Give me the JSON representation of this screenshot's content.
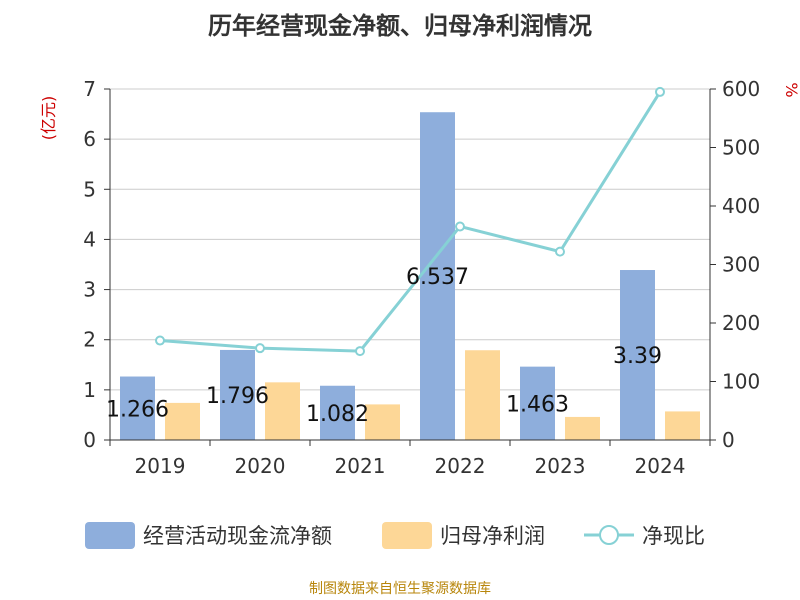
{
  "chart_data": {
    "type": "bar",
    "title": "历年经营现金净额、归母净利润情况",
    "categories": [
      "2019",
      "2020",
      "2021",
      "2022",
      "2023",
      "2024"
    ],
    "y_left": {
      "label": "(亿元)",
      "min": 0,
      "max": 7,
      "ticks": [
        "0",
        "1",
        "2",
        "3",
        "4",
        "5",
        "6",
        "7"
      ]
    },
    "y_right": {
      "label": "%",
      "min": 0,
      "max": 600,
      "ticks": [
        "0",
        "100",
        "200",
        "300",
        "400",
        "500",
        "600"
      ]
    },
    "grid": true,
    "legend_position": "bottom",
    "series": [
      {
        "name": "经营活动现金流净额",
        "type": "bar",
        "axis": "left",
        "color": "#8eaedc",
        "values": [
          1.266,
          1.796,
          1.082,
          6.537,
          1.463,
          3.39
        ],
        "labels": [
          "1.266",
          "1.796",
          "1.082",
          "6.537",
          "1.463",
          "3.39"
        ]
      },
      {
        "name": "归母净利润",
        "type": "bar",
        "axis": "left",
        "color": "#fdd797",
        "values": [
          0.74,
          1.15,
          0.71,
          1.79,
          0.46,
          0.57
        ]
      },
      {
        "name": "净现比",
        "type": "line",
        "axis": "right",
        "color": "#86d1d5",
        "values": [
          170,
          157,
          152,
          365,
          322,
          595
        ]
      }
    ]
  },
  "source_note": "制图数据来自恒生聚源数据库"
}
